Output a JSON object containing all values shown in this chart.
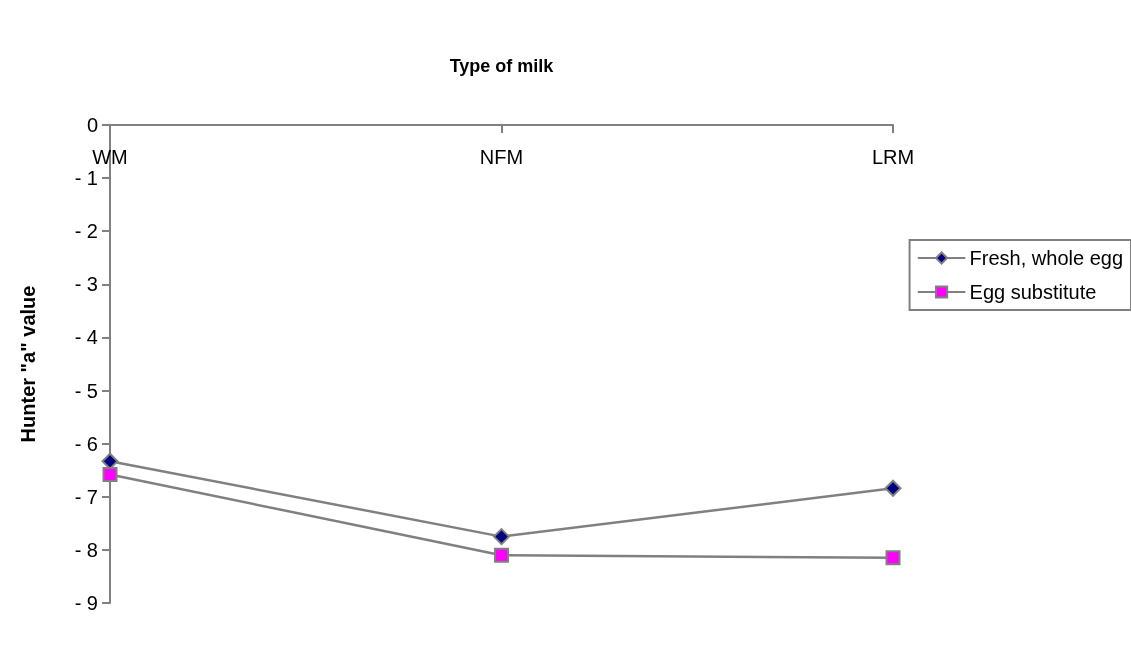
{
  "chart_data": {
    "type": "line",
    "xlabel": "Type of milk",
    "ylabel": "Hunter \"a\" value",
    "categories": [
      "WM",
      "NFM",
      "LRM"
    ],
    "series": [
      {
        "name": "Fresh, whole egg",
        "color": "#000080",
        "values": [
          -6.33,
          -7.75,
          -6.84
        ],
        "marker": "diamond"
      },
      {
        "name": "Egg substitute",
        "color": "#ff00ff",
        "values": [
          -6.58,
          -8.1,
          -8.15
        ],
        "marker": "square"
      }
    ],
    "ylim": [
      -9,
      0
    ],
    "yticks": [
      {
        "value": -9,
        "label": "- 9"
      },
      {
        "value": -8,
        "label": "- 8"
      },
      {
        "value": -7,
        "label": "- 7"
      },
      {
        "value": -6,
        "label": "- 6"
      },
      {
        "value": -5,
        "label": "- 5"
      },
      {
        "value": -4,
        "label": "- 4"
      },
      {
        "value": -3,
        "label": "- 3"
      },
      {
        "value": -2,
        "label": "- 2"
      },
      {
        "value": -1,
        "label": "- 1"
      },
      0
    ],
    "grid": false,
    "legend": "right",
    "line_style": "solid"
  }
}
